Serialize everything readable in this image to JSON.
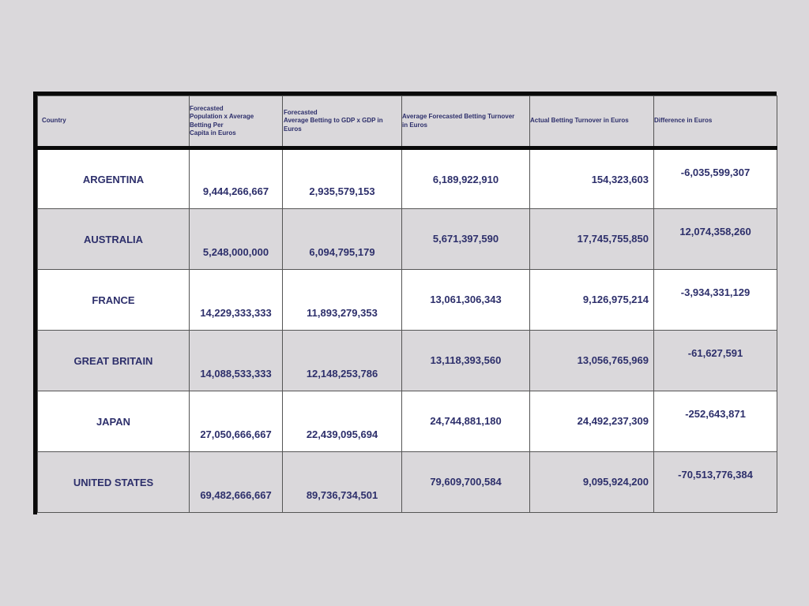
{
  "table": {
    "headers": {
      "country": "Country",
      "forecasted_population": " Forecasted\n Population x Average\nBetting Per\n Capita in Euros",
      "forecasted_gdp": " Forecasted\n Average Betting to GDP x GDP in\nEuros",
      "average_forecasted": "Average Forecasted Betting Turnover\nin Euros",
      "actual_turnover": "Actual Betting Turnover in Euros",
      "difference": "Difference in Euros"
    },
    "rows": [
      {
        "country": "ARGENTINA",
        "forecasted_population": "9,444,266,667",
        "forecasted_gdp": "2,935,579,153",
        "average_forecasted": "6,189,922,910",
        "actual_turnover": "154,323,603",
        "difference": "-6,035,599,307"
      },
      {
        "country": "AUSTRALIA",
        "forecasted_population": "5,248,000,000",
        "forecasted_gdp": "6,094,795,179",
        "average_forecasted": "5,671,397,590",
        "actual_turnover": "17,745,755,850",
        "difference": "12,074,358,260"
      },
      {
        "country": "FRANCE",
        "forecasted_population": "14,229,333,333",
        "forecasted_gdp": "11,893,279,353",
        "average_forecasted": "13,061,306,343",
        "actual_turnover": "9,126,975,214",
        "difference": "-3,934,331,129"
      },
      {
        "country": "GREAT BRITAIN",
        "forecasted_population": "14,088,533,333",
        "forecasted_gdp": "12,148,253,786",
        "average_forecasted": "13,118,393,560",
        "actual_turnover": "13,056,765,969",
        "difference": "-61,627,591"
      },
      {
        "country": "JAPAN",
        "forecasted_population": "27,050,666,667",
        "forecasted_gdp": "22,439,095,694",
        "average_forecasted": "24,744,881,180",
        "actual_turnover": "24,492,237,309",
        "difference": "-252,643,871"
      },
      {
        "country": "UNITED STATES",
        "forecasted_population": "69,482,666,667",
        "forecasted_gdp": "89,736,734,501",
        "average_forecasted": "79,609,700,584",
        "actual_turnover": "9,095,924,200",
        "difference": "-70,513,776,384"
      }
    ]
  },
  "colors": {
    "background": "#dad8db",
    "text": "#2d2f6b",
    "row_white": "#ffffff",
    "border_heavy": "#0a0a0a"
  }
}
